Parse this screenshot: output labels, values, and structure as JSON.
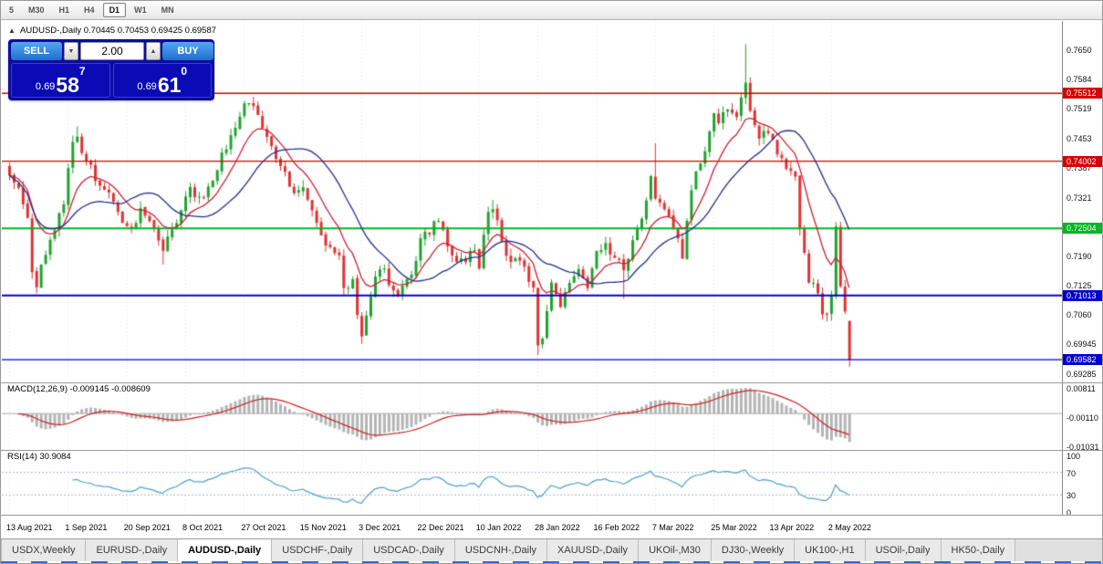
{
  "toolbar": {
    "timeframes": [
      "5",
      "M30",
      "H1",
      "H4",
      "D1",
      "W1",
      "MN"
    ],
    "active_timeframe": "D1"
  },
  "header": {
    "collapse_icon": "▲",
    "symbol_timeframe": "AUDUSD-,Daily",
    "ohlc": "0.70445 0.70453 0.69425 0.69587"
  },
  "trade_panel": {
    "sell_label": "SELL",
    "buy_label": "BUY",
    "volume": "2.00",
    "spin_down_icon": "▼",
    "spin_up_icon": "▲",
    "sell_price_prefix": "0.69",
    "sell_price_big": "58",
    "sell_price_sup": "7",
    "buy_price_prefix": "0.69",
    "buy_price_big": "61",
    "buy_price_sup": "0"
  },
  "tabs": {
    "items": [
      "USDX,Weekly",
      "EURUSD-,Daily",
      "AUDUSD-,Daily",
      "USDCHF-,Daily",
      "USDCAD-,Daily",
      "USDCNH-,Daily",
      "XAUUSD-,Daily",
      "UKOil-,M30",
      "DJ30-,Weekly",
      "UK100-,H1",
      "USOil-,Daily",
      "HK50-,Daily"
    ],
    "active_index": 2
  },
  "chart_data": {
    "type": "candlestick",
    "symbol": "AUDUSD-",
    "timeframe": "Daily",
    "ohlc_header": "0.70445 0.70453 0.69425 0.69587",
    "bars": 187,
    "bars_per_label": 13,
    "x_labels": [
      "13 Aug 2021",
      "1 Sep 2021",
      "20 Sep 2021",
      "8 Oct 2021",
      "27 Oct 2021",
      "15 Nov 2021",
      "3 Dec 2021",
      "22 Dec 2021",
      "10 Jan 2022",
      "28 Jan 2022",
      "16 Feb 2022",
      "7 Mar 2022",
      "25 Mar 2022",
      "13 Apr 2022",
      "2 May 2022"
    ],
    "y_ticks": [
      "0.7650",
      "0.7584",
      "0.7519",
      "0.7453",
      "0.7387",
      "0.7321",
      "0.7255",
      "0.7190",
      "0.7125",
      "0.7060",
      "0.69945",
      "0.69285"
    ],
    "y_range": [
      0.6916,
      0.77
    ],
    "h_lines": [
      {
        "price": 0.75512,
        "label": "0.75512",
        "color": "#d50000",
        "width": 1.3
      },
      {
        "price": 0.74002,
        "label": "0.74002",
        "color": "#d50000",
        "width": 1.3
      },
      {
        "price": 0.72504,
        "label": "0.72504",
        "color": "#00b622",
        "width": 2
      },
      {
        "price": 0.71013,
        "label": "0.71013",
        "color": "#0000cc",
        "width": 2
      },
      {
        "price": 0.69582,
        "label": "0.69582",
        "color": "#0000cc",
        "width": 1.3
      }
    ],
    "price_anchors": [
      [
        0,
        0.7372
      ],
      [
        2,
        0.7335
      ],
      [
        4,
        0.727
      ],
      [
        5,
        0.7145
      ],
      [
        6,
        0.713
      ],
      [
        8,
        0.72
      ],
      [
        10,
        0.7245
      ],
      [
        12,
        0.731
      ],
      [
        14,
        0.744
      ],
      [
        15,
        0.7453
      ],
      [
        17,
        0.7405
      ],
      [
        19,
        0.7365
      ],
      [
        21,
        0.734
      ],
      [
        23,
        0.73
      ],
      [
        25,
        0.7255
      ],
      [
        27,
        0.7245
      ],
      [
        29,
        0.729
      ],
      [
        31,
        0.7262
      ],
      [
        33,
        0.723
      ],
      [
        34,
        0.7196
      ],
      [
        36,
        0.7255
      ],
      [
        38,
        0.729
      ],
      [
        40,
        0.734
      ],
      [
        42,
        0.7315
      ],
      [
        44,
        0.734
      ],
      [
        46,
        0.739
      ],
      [
        48,
        0.743
      ],
      [
        50,
        0.747
      ],
      [
        52,
        0.752
      ],
      [
        53,
        0.7536
      ],
      [
        55,
        0.7505
      ],
      [
        57,
        0.746
      ],
      [
        59,
        0.7415
      ],
      [
        61,
        0.737
      ],
      [
        63,
        0.733
      ],
      [
        65,
        0.7346
      ],
      [
        67,
        0.73
      ],
      [
        69,
        0.724
      ],
      [
        71,
        0.72
      ],
      [
        73,
        0.7185
      ],
      [
        74,
        0.7113
      ],
      [
        76,
        0.713
      ],
      [
        78,
        0.7
      ],
      [
        79,
        0.705
      ],
      [
        80,
        0.709
      ],
      [
        81,
        0.714
      ],
      [
        82,
        0.717
      ],
      [
        84,
        0.7135
      ],
      [
        86,
        0.71
      ],
      [
        88,
        0.713
      ],
      [
        90,
        0.718
      ],
      [
        91,
        0.722
      ],
      [
        93,
        0.7245
      ],
      [
        95,
        0.727
      ],
      [
        97,
        0.722
      ],
      [
        99,
        0.717
      ],
      [
        101,
        0.7185
      ],
      [
        103,
        0.721
      ],
      [
        104,
        0.717
      ],
      [
        106,
        0.7288
      ],
      [
        107,
        0.7295
      ],
      [
        109,
        0.723
      ],
      [
        110,
        0.7183
      ],
      [
        113,
        0.7175
      ],
      [
        116,
        0.712
      ],
      [
        117,
        0.699
      ],
      [
        118,
        0.7003
      ],
      [
        120,
        0.7135
      ],
      [
        122,
        0.7077
      ],
      [
        124,
        0.713
      ],
      [
        126,
        0.717
      ],
      [
        128,
        0.7126
      ],
      [
        130,
        0.719
      ],
      [
        132,
        0.722
      ],
      [
        134,
        0.718
      ],
      [
        136,
        0.7163
      ],
      [
        138,
        0.722
      ],
      [
        139,
        0.7253
      ],
      [
        141,
        0.731
      ],
      [
        142,
        0.737
      ],
      [
        143,
        0.7325
      ],
      [
        145,
        0.729
      ],
      [
        147,
        0.725
      ],
      [
        149,
        0.719
      ],
      [
        150,
        0.727
      ],
      [
        152,
        0.738
      ],
      [
        154,
        0.7425
      ],
      [
        156,
        0.7512
      ],
      [
        157,
        0.749
      ],
      [
        159,
        0.7513
      ],
      [
        161,
        0.7498
      ],
      [
        163,
        0.7578
      ],
      [
        164,
        0.7513
      ],
      [
        166,
        0.7458
      ],
      [
        168,
        0.7455
      ],
      [
        169,
        0.745
      ],
      [
        171,
        0.74
      ],
      [
        172,
        0.7373
      ],
      [
        174,
        0.7364
      ],
      [
        175,
        0.7241
      ],
      [
        176,
        0.72
      ],
      [
        177,
        0.7127
      ],
      [
        178,
        0.714
      ],
      [
        179,
        0.7097
      ],
      [
        180,
        0.7063
      ],
      [
        181,
        0.705
      ],
      [
        182,
        0.7095
      ],
      [
        183,
        0.7262
      ],
      [
        184,
        0.7111
      ],
      [
        185,
        0.7075
      ],
      [
        186,
        0.69587
      ]
    ],
    "special_wicks": [
      [
        6,
        "l",
        0.7106
      ],
      [
        15,
        "h",
        0.7478
      ],
      [
        34,
        "l",
        0.717
      ],
      [
        78,
        "l",
        0.69935
      ],
      [
        107,
        "h",
        0.7314
      ],
      [
        117,
        "l",
        0.6968
      ],
      [
        136,
        "l",
        0.7094
      ],
      [
        143,
        "h",
        0.744
      ],
      [
        163,
        "h",
        0.7661
      ]
    ],
    "last_candle": {
      "o": 0.70445,
      "h": 0.70453,
      "l": 0.69425,
      "c": 0.69587
    },
    "ma_fast_period": 10,
    "ma_slow_period": 21,
    "colors": {
      "up": "#1fa32e",
      "down": "#e03232",
      "ma_fast": "#cc2233",
      "ma_slow": "#1f2f8f",
      "macd_hist": "#b4b4b4",
      "macd_signal": "#cc2222",
      "rsi": "#4a9fd4",
      "grid": "rgba(0,0,0,0.10)"
    },
    "macd": {
      "label": "MACD(12,26,9)",
      "values": "-0.009145 -0.008609",
      "y_ticks": [
        "0.00811",
        "-0.00110",
        "-0.01031"
      ],
      "y_range": [
        -0.01031,
        0.00811
      ]
    },
    "rsi": {
      "label": "RSI(14)",
      "value": "30.9084",
      "y_ticks": [
        "100",
        "70",
        "30",
        "0"
      ],
      "levels": [
        30,
        70
      ]
    }
  }
}
